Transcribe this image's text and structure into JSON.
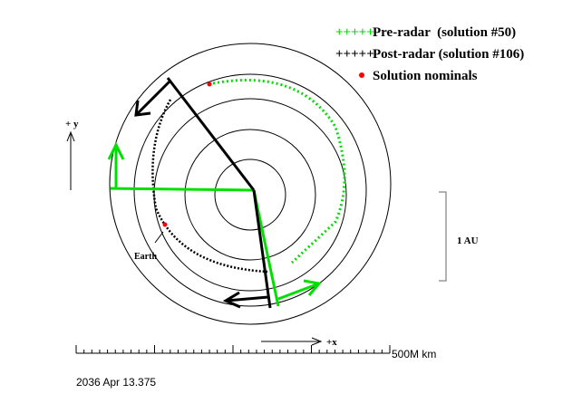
{
  "legend": [
    {
      "label": "Pre-radar  (solution #50)"
    },
    {
      "label": "Post-radar (solution #106)"
    },
    {
      "label": "Solution nominals"
    }
  ],
  "axes": {
    "y_label": "+ y",
    "x_label": "+x"
  },
  "scale": {
    "au_label": "1 AU",
    "distance_label": "500M km"
  },
  "annotations": {
    "earth": "Earth"
  },
  "footer": {
    "date": "2036 Apr 13.375"
  }
}
